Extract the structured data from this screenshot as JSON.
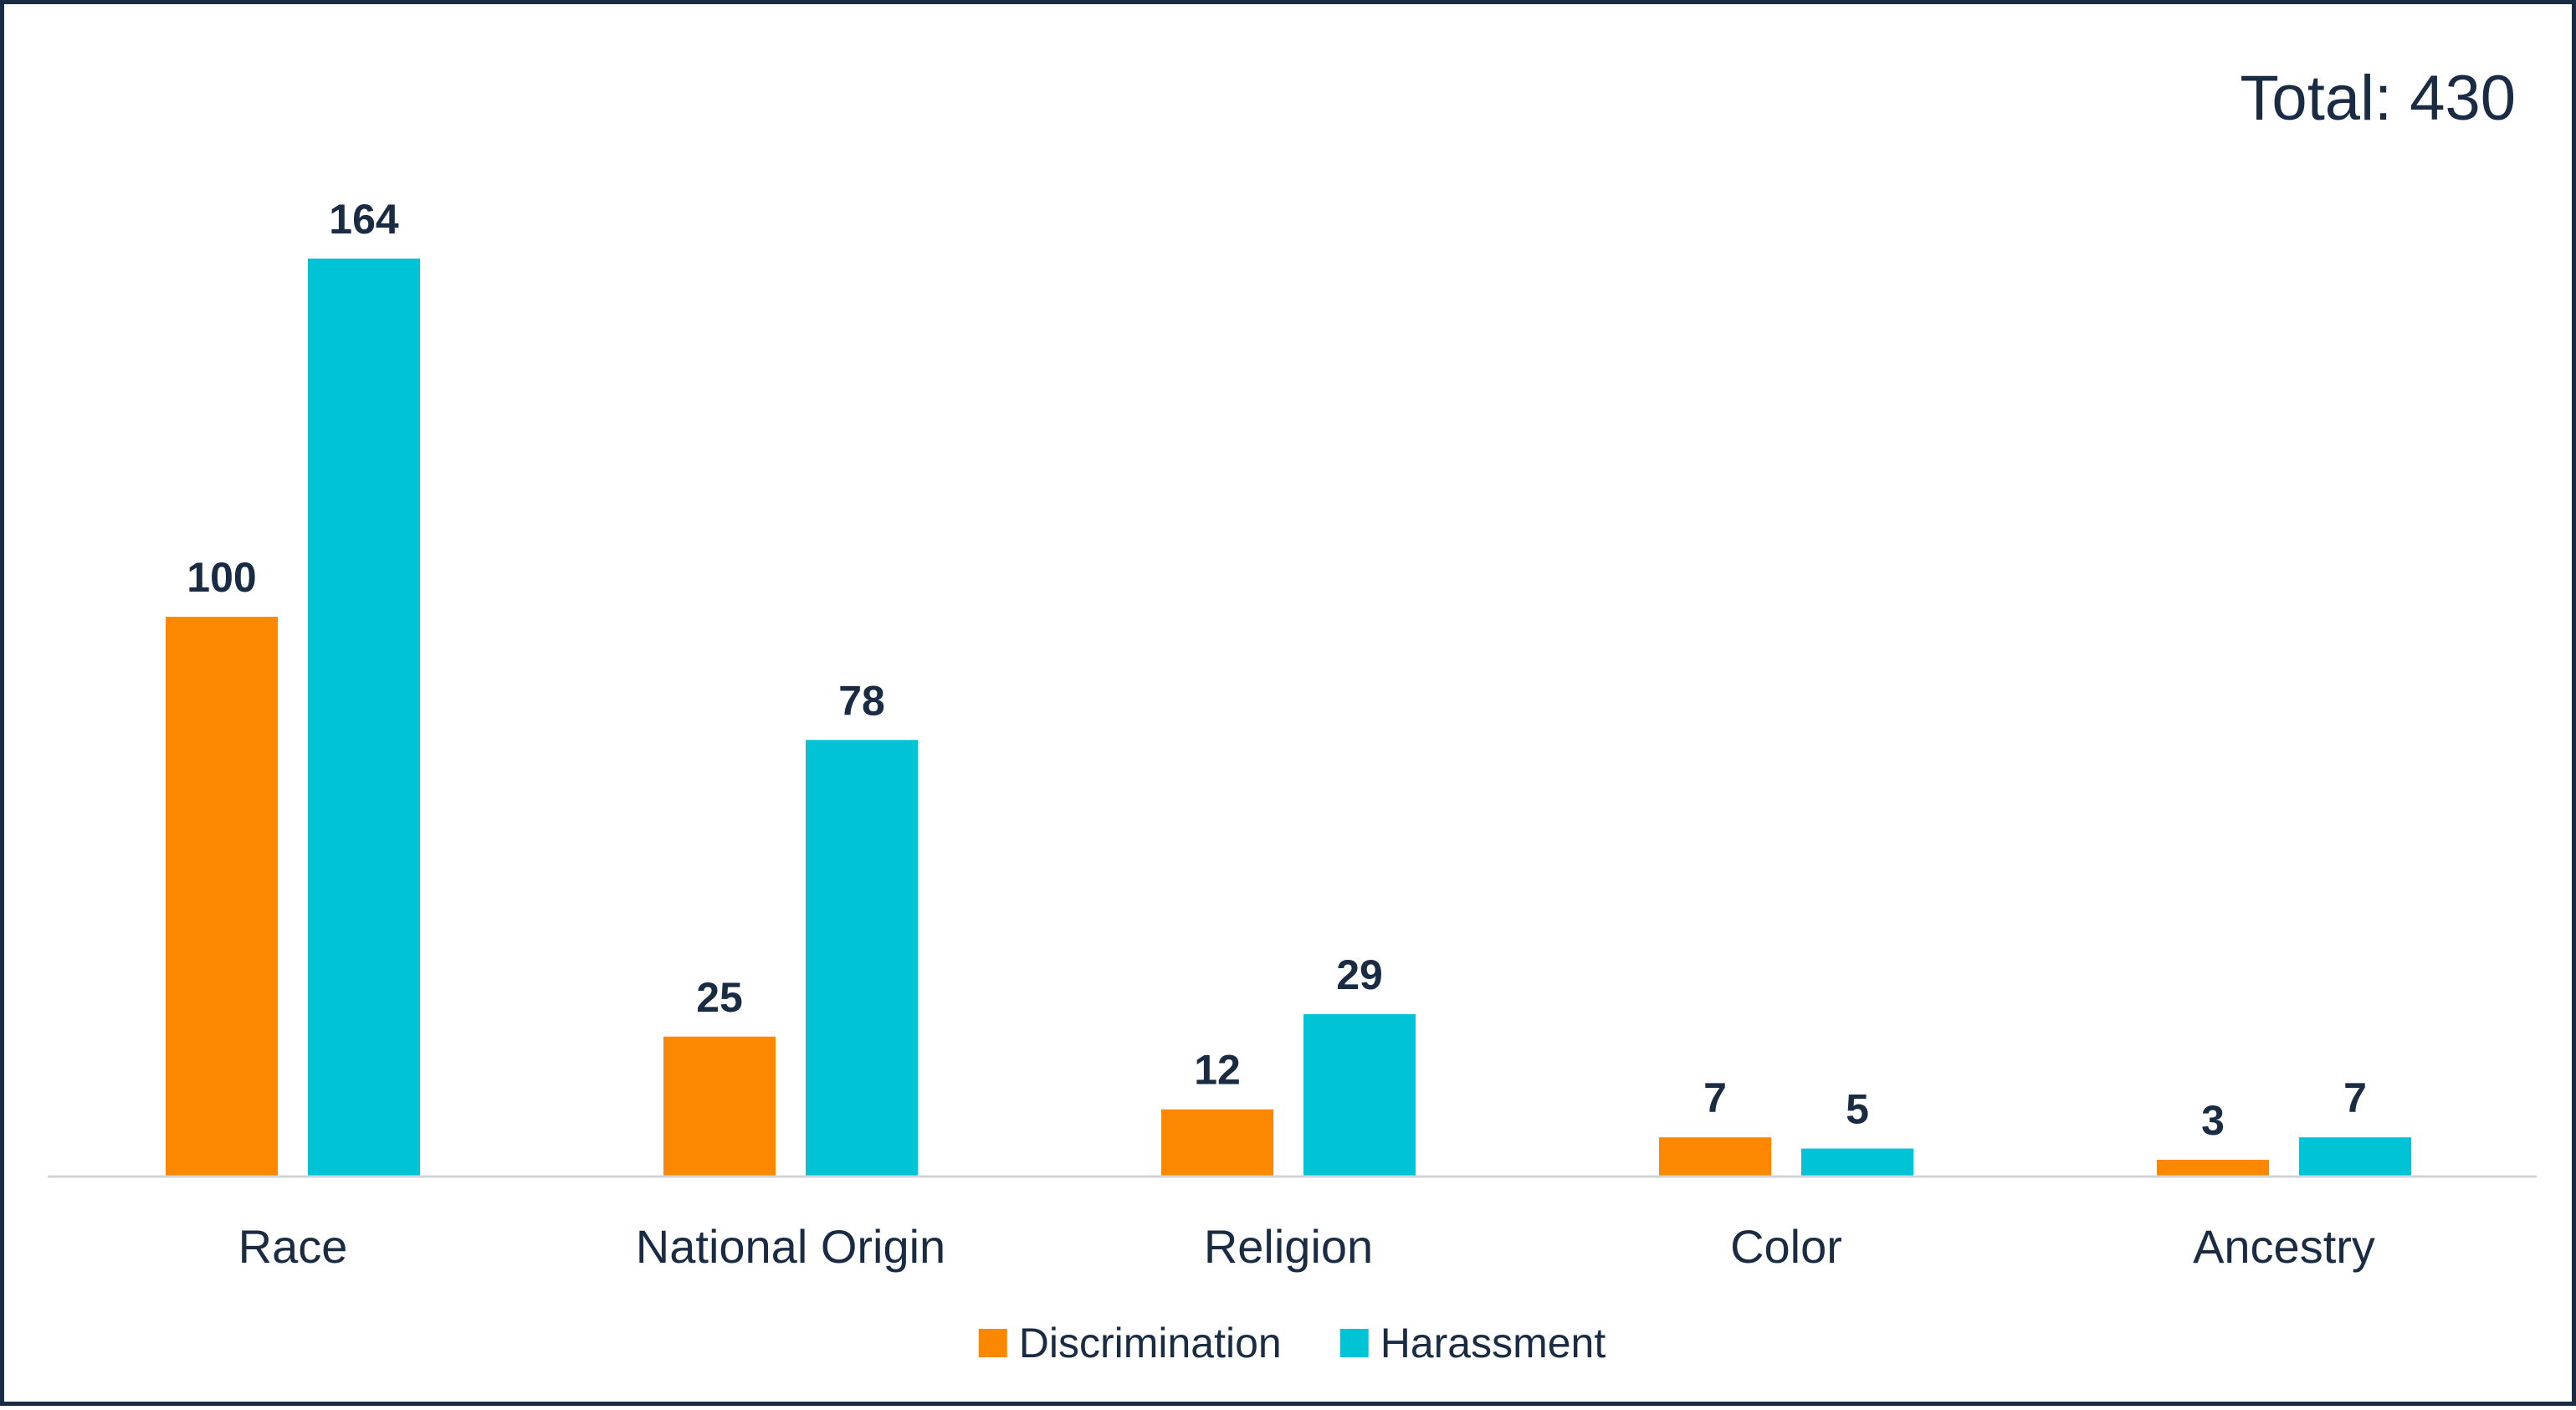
{
  "chart_data": {
    "type": "bar",
    "annotation": "Total: 430",
    "categories": [
      "Race",
      "National Origin",
      "Religion",
      "Color",
      "Ancestry"
    ],
    "series": [
      {
        "name": "Discrimination",
        "color": "#fb8800",
        "label_color": "#1a2b44",
        "values": [
          100,
          25,
          12,
          7,
          3
        ]
      },
      {
        "name": "Harassment",
        "color": "#00c4d6",
        "label_color": "#1a2b44",
        "values": [
          164,
          78,
          29,
          5,
          7
        ]
      }
    ],
    "ylim": [
      0,
      164
    ],
    "grid": false,
    "legend": "bottom-center",
    "axis_color": "#d0d4da"
  }
}
